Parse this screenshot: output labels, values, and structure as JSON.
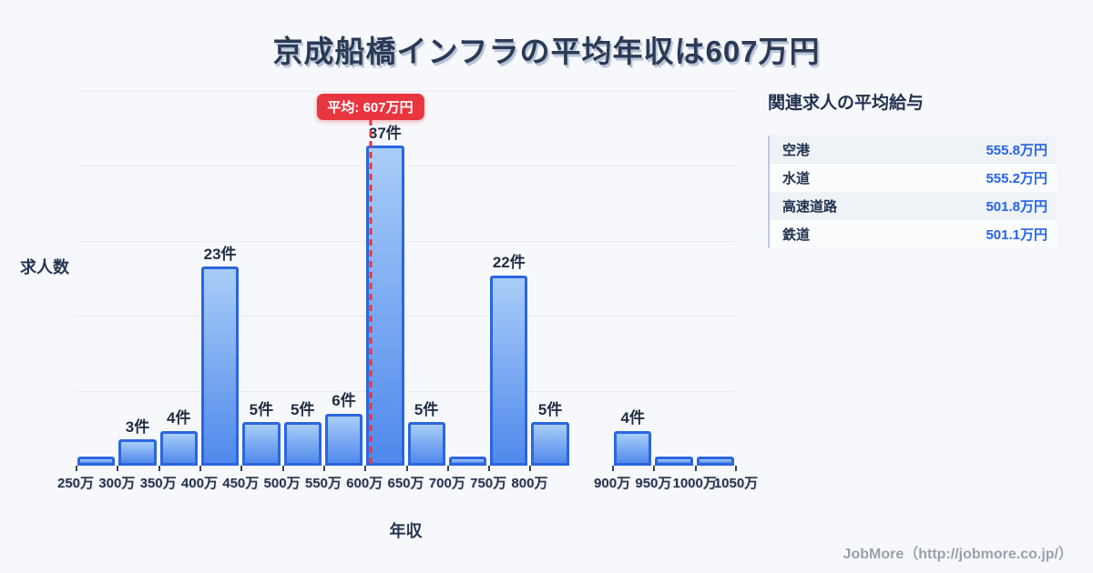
{
  "title": "京成船橋インフラの平均年収は607万円",
  "colors": {
    "background": "#f7f8fb",
    "title_navy": "#2b3a55",
    "bar_border": "#2b66e0",
    "bar_gradient_top": "#a9cdf8",
    "bar_gradient_bottom": "#5089ec",
    "accent_red": "#e8353f",
    "value_blue": "#2563eb",
    "gridline": "#e8ebf1"
  },
  "chart_data": {
    "type": "bar",
    "title": "京成船橋インフラの平均年収は607万円",
    "xlabel": "年収",
    "ylabel": "求人数",
    "x_unit": "万円",
    "bin_width": 50,
    "x_range": [
      250,
      1050
    ],
    "grid": "horizontal",
    "average_line": {
      "label": "平均: 607万円",
      "value": 607
    },
    "bins": [
      {
        "start": 250,
        "end": 300,
        "tick_label": "250万",
        "count": 1,
        "count_label": ""
      },
      {
        "start": 300,
        "end": 350,
        "tick_label": "300万",
        "count": 3,
        "count_label": "3件"
      },
      {
        "start": 350,
        "end": 400,
        "tick_label": "350万",
        "count": 4,
        "count_label": "4件"
      },
      {
        "start": 400,
        "end": 450,
        "tick_label": "400万",
        "count": 23,
        "count_label": "23件"
      },
      {
        "start": 450,
        "end": 500,
        "tick_label": "450万",
        "count": 5,
        "count_label": "5件"
      },
      {
        "start": 500,
        "end": 550,
        "tick_label": "500万",
        "count": 5,
        "count_label": "5件"
      },
      {
        "start": 550,
        "end": 600,
        "tick_label": "550万",
        "count": 6,
        "count_label": "6件"
      },
      {
        "start": 600,
        "end": 650,
        "tick_label": "600万",
        "count": 37,
        "count_label": "37件"
      },
      {
        "start": 650,
        "end": 700,
        "tick_label": "650万",
        "count": 5,
        "count_label": "5件"
      },
      {
        "start": 700,
        "end": 750,
        "tick_label": "700万",
        "count": 1,
        "count_label": ""
      },
      {
        "start": 750,
        "end": 800,
        "tick_label": "750万",
        "count": 22,
        "count_label": "22件"
      },
      {
        "start": 800,
        "end": 850,
        "tick_label": "800万",
        "count": 5,
        "count_label": "5件"
      },
      {
        "start": 850,
        "end": 900,
        "tick_label": "",
        "count": 0,
        "count_label": ""
      },
      {
        "start": 900,
        "end": 950,
        "tick_label": "900万",
        "count": 4,
        "count_label": "4件"
      },
      {
        "start": 950,
        "end": 1000,
        "tick_label": "950万",
        "count": 1,
        "count_label": ""
      },
      {
        "start": 1000,
        "end": 1050,
        "tick_label": "1000万",
        "count": 1,
        "count_label": ""
      }
    ],
    "x_axis_end_label": "1050万"
  },
  "side_panel": {
    "heading": "関連求人の平均給与",
    "rows": [
      {
        "label": "空港",
        "value": "555.8万円"
      },
      {
        "label": "水道",
        "value": "555.2万円"
      },
      {
        "label": "高速道路",
        "value": "501.8万円"
      },
      {
        "label": "鉄道",
        "value": "501.1万円"
      }
    ]
  },
  "footer": {
    "credit": "JobMore（http://jobmore.co.jp/）"
  }
}
